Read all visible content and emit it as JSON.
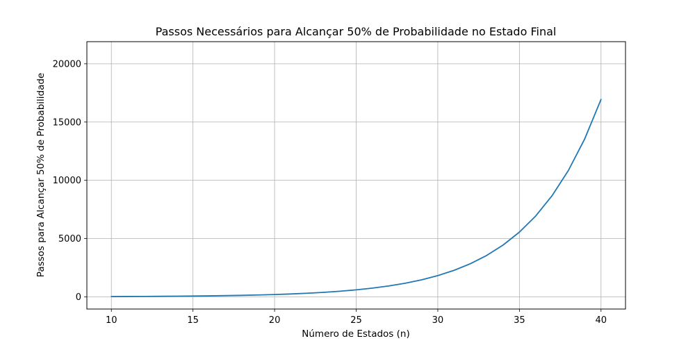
{
  "chart_data": {
    "type": "line",
    "title": "Passos Necessários para Alcançar 50% de Probabilidade no Estado Final",
    "xlabel": "Número de Estados (n)",
    "ylabel": "Passos para Alcançar 50% de Probabilidade",
    "xlim": [
      8.5,
      41.5
    ],
    "ylim": [
      -1050,
      21900
    ],
    "xticks": [
      10,
      15,
      20,
      25,
      30,
      35,
      40
    ],
    "yticks": [
      0,
      5000,
      10000,
      15000,
      20000
    ],
    "grid": true,
    "line_color": "#1f77b4",
    "series": [
      {
        "x": [
          10,
          11,
          12,
          13,
          14,
          15,
          16,
          17,
          18,
          19,
          20,
          21,
          22,
          23,
          24,
          25,
          26,
          27,
          28,
          29,
          30,
          31,
          32,
          33,
          34,
          35,
          36,
          37,
          38,
          39,
          40
        ],
        "values": [
          20,
          26,
          32,
          40,
          51,
          64,
          80,
          100,
          125,
          156,
          195,
          244,
          305,
          381,
          477,
          596,
          745,
          931,
          1164,
          1455,
          1819,
          2274,
          2842,
          3553,
          4441,
          5551,
          6939,
          8674,
          10842,
          13553,
          16941
        ]
      }
    ]
  }
}
